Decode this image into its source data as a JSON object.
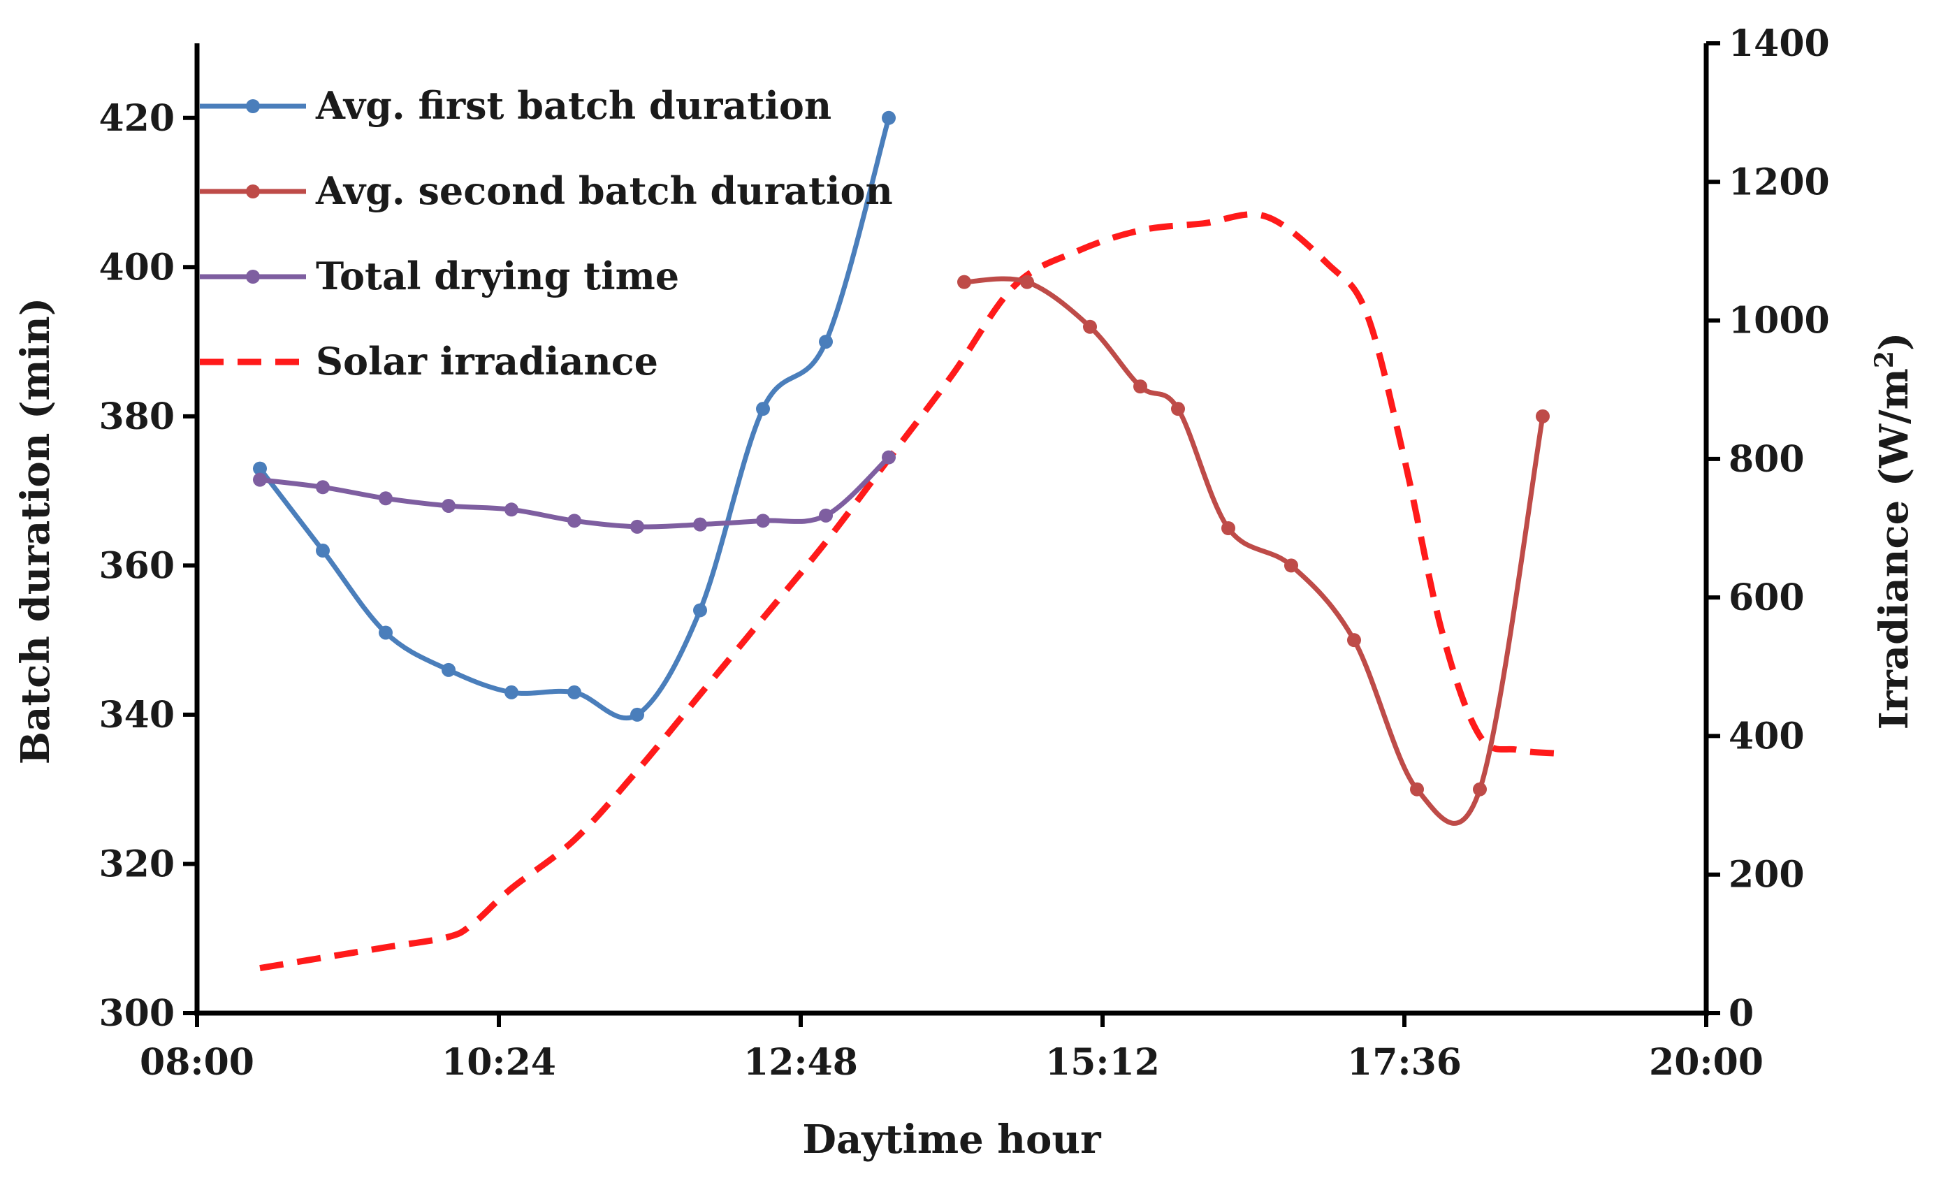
{
  "chart_data": {
    "type": "line",
    "title": "",
    "xlabel": "Daytime hour",
    "ylabel": "Batch duration (min)",
    "y2label_main": "Irradiance (W/m",
    "y2label_sup": "2",
    "y2label_end": ")",
    "xlim_hours": [
      8,
      20
    ],
    "ylim": [
      300,
      430
    ],
    "y2lim": [
      0,
      1400
    ],
    "x_ticks": [
      {
        "value": 8.0,
        "label": "08:00"
      },
      {
        "value": 10.4,
        "label": "10:24"
      },
      {
        "value": 12.8,
        "label": "12:48"
      },
      {
        "value": 15.2,
        "label": "15:12"
      },
      {
        "value": 17.6,
        "label": "17:36"
      },
      {
        "value": 20.0,
        "label": "20:00"
      }
    ],
    "y_ticks": [
      300,
      320,
      340,
      360,
      380,
      400,
      420
    ],
    "y2_ticks": [
      0,
      200,
      400,
      600,
      800,
      1000,
      1200,
      1400
    ],
    "legend_position": "top-left",
    "series": [
      {
        "name": "Avg. first batch duration",
        "axis": "left",
        "color": "#4a7ebb",
        "style": "solid",
        "markers": true,
        "x": [
          8.5,
          9.0,
          9.5,
          10.0,
          10.5,
          11.0,
          11.5,
          12.0,
          12.5,
          13.0,
          13.5
        ],
        "values": [
          373,
          362,
          351,
          346,
          343,
          343,
          340,
          354,
          381,
          390,
          420
        ]
      },
      {
        "name": "Avg. second batch duration",
        "axis": "left",
        "color": "#be4b48",
        "style": "solid",
        "markers": true,
        "x": [
          14.1,
          14.6,
          15.1,
          15.5,
          15.8,
          16.2,
          16.7,
          17.2,
          17.7,
          18.2,
          18.7
        ],
        "values": [
          398,
          398,
          392,
          384,
          381,
          365,
          360,
          350,
          330,
          330,
          380
        ]
      },
      {
        "name": "Total drying time",
        "axis": "left",
        "color": "#7e5ea0",
        "style": "solid",
        "markers": true,
        "x": [
          8.5,
          9.0,
          9.5,
          10.0,
          10.5,
          11.0,
          11.5,
          12.0,
          12.5,
          13.0,
          13.5
        ],
        "values": [
          371.5,
          370.5,
          369,
          368,
          367.5,
          366,
          365.2,
          365.5,
          366,
          366.7,
          374.5
        ]
      },
      {
        "name": "Solar irradiance",
        "axis": "right",
        "color": "#ff1a1a",
        "style": "dashed",
        "markers": false,
        "x": [
          8.5,
          9.0,
          9.5,
          10.0,
          10.2,
          10.5,
          11.0,
          11.5,
          12.0,
          12.5,
          13.0,
          13.5,
          14.0,
          14.5,
          15.0,
          15.5,
          16.0,
          16.5,
          17.0,
          17.3,
          17.6,
          17.9,
          18.2,
          18.5,
          18.8
        ],
        "values": [
          65,
          80,
          95,
          110,
          130,
          180,
          250,
          350,
          460,
          570,
          680,
          800,
          920,
          1050,
          1100,
          1130,
          1140,
          1150,
          1080,
          1010,
          800,
          550,
          400,
          380,
          375
        ]
      }
    ]
  }
}
